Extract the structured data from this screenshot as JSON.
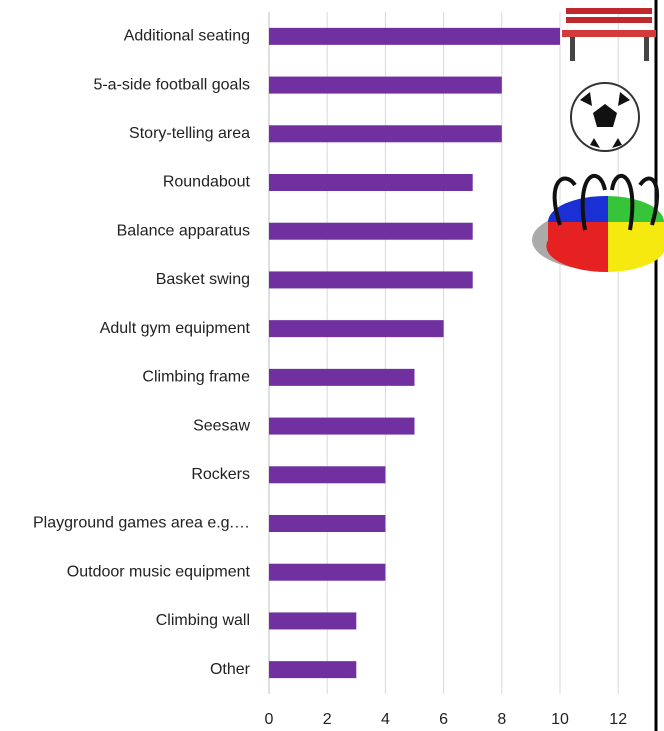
{
  "chart_data": {
    "type": "bar",
    "orientation": "horizontal",
    "categories": [
      "Additional seating",
      "5-a-side football goals",
      "Story-telling area",
      "Roundabout",
      "Balance apparatus",
      "Basket swing",
      "Adult gym equipment",
      "Climbing frame",
      "Seesaw",
      "Rockers",
      "Playground games area e.g.…",
      "Outdoor music equipment",
      "Climbing wall",
      "Other"
    ],
    "values": [
      10,
      8,
      8,
      7,
      7,
      7,
      6,
      5,
      5,
      4,
      4,
      4,
      3,
      3
    ],
    "color": "#7030a0",
    "xlim": [
      0,
      13
    ],
    "xticks": [
      0,
      2,
      4,
      6,
      8,
      10,
      12
    ],
    "grid": true
  }
}
